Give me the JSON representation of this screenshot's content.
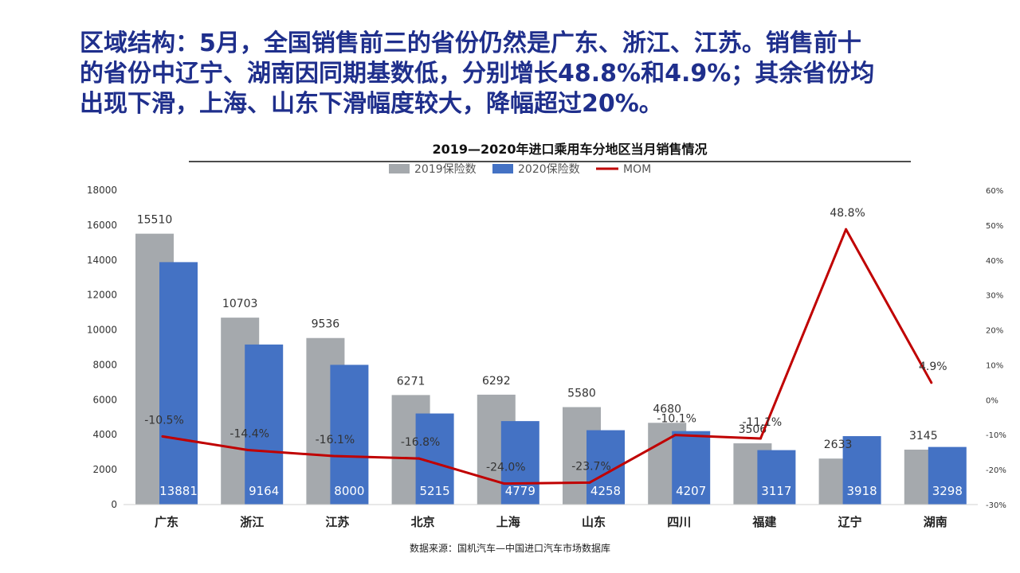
{
  "headline": {
    "line1": "区域结构：5月，全国销售前三的省份仍然是广东、浙江、江苏。销售前十",
    "line2": "的省份中辽宁、湖南因同期基数低，分别增长48.8%和4.9%；其余省份均",
    "line3": "出现下滑，上海、山东下滑幅度较大，降幅超过20%。"
  },
  "chart_data": {
    "type": "bar",
    "title": "2019—2020年进口乘用车分地区当月销售情况",
    "categories": [
      "广东",
      "浙江",
      "江苏",
      "北京",
      "上海",
      "山东",
      "四川",
      "福建",
      "辽宁",
      "湖南"
    ],
    "series": [
      {
        "name": "2019保险数",
        "type": "bar",
        "axis": "left",
        "color": "#a5a9ad",
        "values": [
          15510,
          10703,
          9536,
          6271,
          6292,
          5580,
          4680,
          3506,
          2633,
          3145
        ]
      },
      {
        "name": "2020保险数",
        "type": "bar",
        "axis": "left",
        "color": "#4472c4",
        "values": [
          13881,
          9164,
          8000,
          5215,
          4779,
          4258,
          4207,
          3117,
          3918,
          3298
        ]
      },
      {
        "name": "MOM",
        "type": "line",
        "axis": "right",
        "color": "#c00000",
        "values": [
          -10.5,
          -14.4,
          -16.1,
          -16.8,
          -24.0,
          -23.7,
          -10.1,
          -11.1,
          48.8,
          4.9
        ],
        "labels": [
          "-10.5%",
          "-14.4%",
          "-16.1%",
          "-16.8%",
          "-24.0%",
          "-23.7%",
          "-10.1%",
          "-11.1%",
          "48.8%",
          "4.9%"
        ]
      }
    ],
    "left_axis": {
      "range": [
        0,
        18000
      ],
      "ticks": [
        "0",
        "2000",
        "4000",
        "6000",
        "8000",
        "10000",
        "12000",
        "14000",
        "16000",
        "18000"
      ]
    },
    "right_axis": {
      "range": [
        -30,
        60
      ],
      "ticks": [
        "-30%",
        "-20%",
        "-10%",
        "0%",
        "10%",
        "20%",
        "30%",
        "40%",
        "50%",
        "60%"
      ]
    },
    "legend_position": "top",
    "grid": false
  },
  "source": "数据来源：国机汽车—中国进口汽车市场数据库"
}
